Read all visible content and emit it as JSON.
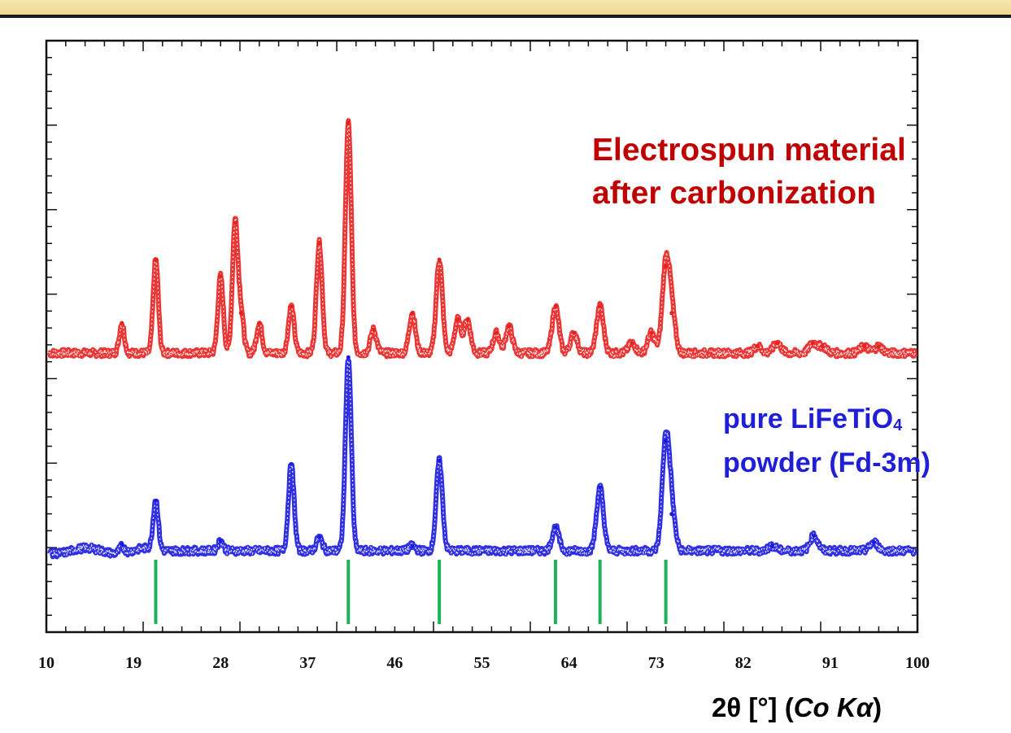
{
  "chart_data": {
    "type": "line",
    "xlabel_parts": [
      "2θ [°] (",
      "Co Kα",
      ")"
    ],
    "xlim": [
      10,
      100
    ],
    "x_ticks": [
      10,
      19,
      28,
      37,
      46,
      55,
      64,
      73,
      82,
      91,
      100
    ],
    "y_ticks_shown": false,
    "grid": false,
    "series": [
      {
        "name_lines": [
          "Electrospun material",
          "after carbonization"
        ],
        "color": "#e8201f",
        "label_color": "#c00000",
        "baseline": 0.0,
        "peaks": [
          {
            "x": 17.8,
            "h": 0.9
          },
          {
            "x": 21.3,
            "h": 2.8
          },
          {
            "x": 28.0,
            "h": 2.3
          },
          {
            "x": 29.5,
            "h": 3.9
          },
          {
            "x": 30.1,
            "h": 1.2
          },
          {
            "x": 32.0,
            "h": 0.9
          },
          {
            "x": 35.3,
            "h": 1.4
          },
          {
            "x": 38.2,
            "h": 3.3
          },
          {
            "x": 41.2,
            "h": 6.9
          },
          {
            "x": 43.8,
            "h": 0.7
          },
          {
            "x": 47.8,
            "h": 1.2
          },
          {
            "x": 50.6,
            "h": 2.8
          },
          {
            "x": 52.5,
            "h": 1.0
          },
          {
            "x": 53.5,
            "h": 1.0
          },
          {
            "x": 56.5,
            "h": 0.6
          },
          {
            "x": 57.8,
            "h": 0.8
          },
          {
            "x": 62.6,
            "h": 1.4
          },
          {
            "x": 64.5,
            "h": 0.6
          },
          {
            "x": 67.2,
            "h": 1.4
          },
          {
            "x": 70.5,
            "h": 0.3
          },
          {
            "x": 72.5,
            "h": 0.6
          },
          {
            "x": 74.0,
            "h": 2.6
          },
          {
            "x": 74.6,
            "h": 1.2
          },
          {
            "x": 83.5,
            "h": 0.2
          },
          {
            "x": 85.5,
            "h": 0.3
          },
          {
            "x": 89.2,
            "h": 0.3
          },
          {
            "x": 90.2,
            "h": 0.2
          },
          {
            "x": 94.5,
            "h": 0.2
          },
          {
            "x": 96.0,
            "h": 0.2
          }
        ]
      },
      {
        "name_lines": [
          "pure LiFeTiO",
          "powder (Fd-3m)"
        ],
        "name_subscript": "4",
        "color": "#1a1adf",
        "label_color": "#1f1fd8",
        "baseline": 0.0,
        "peaks": [
          {
            "x": 17.8,
            "h": 0.2
          },
          {
            "x": 21.3,
            "h": 1.5
          },
          {
            "x": 28.0,
            "h": 0.3
          },
          {
            "x": 35.3,
            "h": 2.6
          },
          {
            "x": 38.2,
            "h": 0.4
          },
          {
            "x": 41.2,
            "h": 5.8
          },
          {
            "x": 47.8,
            "h": 0.15
          },
          {
            "x": 50.6,
            "h": 2.7
          },
          {
            "x": 62.6,
            "h": 0.7
          },
          {
            "x": 67.2,
            "h": 1.9
          },
          {
            "x": 74.0,
            "h": 3.3
          },
          {
            "x": 74.6,
            "h": 1.1
          },
          {
            "x": 85.0,
            "h": 0.15
          },
          {
            "x": 89.3,
            "h": 0.45
          },
          {
            "x": 95.5,
            "h": 0.25
          }
        ]
      }
    ],
    "reference_lines": {
      "color": "#1db15a",
      "positions": [
        21.3,
        41.2,
        50.6,
        62.6,
        67.2,
        74.0
      ]
    }
  }
}
